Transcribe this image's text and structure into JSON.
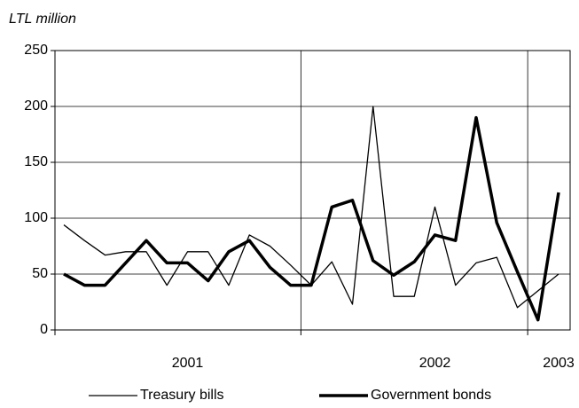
{
  "chart_data": {
    "type": "line",
    "y_axis_label": "LTL million",
    "categories": [
      null,
      null,
      null,
      null,
      null,
      null,
      "2001",
      null,
      null,
      null,
      null,
      null,
      null,
      null,
      null,
      null,
      null,
      null,
      "2002",
      null,
      null,
      null,
      null,
      null,
      "2003"
    ],
    "series": [
      {
        "name": "Treasury bills",
        "color": "#000000",
        "width": 1.3,
        "values": [
          94,
          80,
          67,
          70,
          70,
          40,
          70,
          70,
          40,
          85,
          75,
          58,
          40,
          61,
          23,
          200,
          30,
          30,
          110,
          40,
          60,
          65,
          20,
          35,
          50
        ]
      },
      {
        "name": "Government bonds",
        "color": "#000000",
        "width": 3.5,
        "values": [
          50,
          40,
          40,
          60,
          80,
          60,
          60,
          44,
          70,
          80,
          56,
          40,
          40,
          110,
          116,
          62,
          49,
          61,
          85,
          80,
          190,
          96,
          52,
          9,
          123
        ]
      }
    ],
    "ylim": [
      0,
      250
    ],
    "yticks": [
      0,
      50,
      100,
      150,
      200,
      250
    ],
    "grid": true
  }
}
